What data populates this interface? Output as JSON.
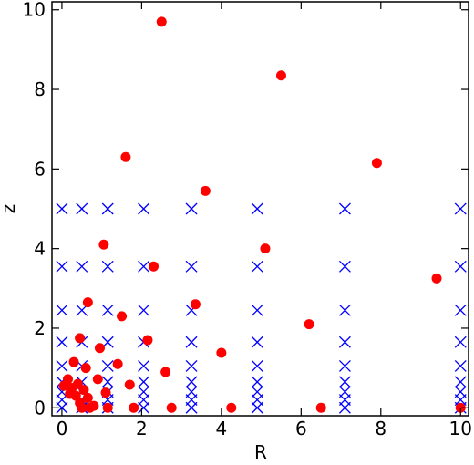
{
  "chart_data": {
    "type": "scatter",
    "xlabel": "R",
    "ylabel": "z",
    "xlim": [
      -0.25,
      10.2
    ],
    "ylim": [
      -0.2,
      10.2
    ],
    "xticks": [
      0,
      2,
      4,
      6,
      8,
      10
    ],
    "yticks": [
      0,
      2,
      4,
      6,
      8,
      10
    ],
    "xtick_labels": [
      "0",
      "2",
      "4",
      "6",
      "8",
      "10"
    ],
    "ytick_labels": [
      "0",
      "2",
      "4",
      "6",
      "8",
      "10"
    ],
    "grid": false,
    "series": [
      {
        "marker": "x",
        "color": "#0000ff",
        "x_levels": [
          0,
          0.5,
          1.15,
          2.05,
          3.25,
          4.9,
          7.1,
          10
        ],
        "z_levels": [
          0,
          0.2,
          0.4,
          0.65,
          1.05,
          1.65,
          2.45,
          3.55,
          5.0
        ]
      },
      {
        "marker": "o",
        "color": "#ff0000",
        "points": [
          [
            2.5,
            9.7
          ],
          [
            5.5,
            8.35
          ],
          [
            1.6,
            6.3
          ],
          [
            7.9,
            6.15
          ],
          [
            3.6,
            5.45
          ],
          [
            1.05,
            4.1
          ],
          [
            5.1,
            4.0
          ],
          [
            2.3,
            3.55
          ],
          [
            9.4,
            3.25
          ],
          [
            0.65,
            2.65
          ],
          [
            3.35,
            2.6
          ],
          [
            1.5,
            2.3
          ],
          [
            6.2,
            2.1
          ],
          [
            0.45,
            1.75
          ],
          [
            2.15,
            1.7
          ],
          [
            0.95,
            1.5
          ],
          [
            4.0,
            1.38
          ],
          [
            0.3,
            1.15
          ],
          [
            1.4,
            1.1
          ],
          [
            0.6,
            1.0
          ],
          [
            2.6,
            0.9
          ],
          [
            0.15,
            0.72
          ],
          [
            0.9,
            0.72
          ],
          [
            0.4,
            0.6
          ],
          [
            1.7,
            0.58
          ],
          [
            0.05,
            0.55
          ],
          [
            0.25,
            0.5
          ],
          [
            0.55,
            0.45
          ],
          [
            1.1,
            0.38
          ],
          [
            0.2,
            0.35
          ],
          [
            0.35,
            0.3
          ],
          [
            0.65,
            0.25
          ],
          [
            0.45,
            0.12
          ],
          [
            0.8,
            0.05
          ],
          [
            0.5,
            0.0
          ],
          [
            1.15,
            0.0
          ],
          [
            1.8,
            0.0
          ],
          [
            2.75,
            0.0
          ],
          [
            4.25,
            0.0
          ],
          [
            6.5,
            0.0
          ],
          [
            0.7,
            0.0
          ],
          [
            10.0,
            0.0
          ]
        ]
      }
    ]
  }
}
